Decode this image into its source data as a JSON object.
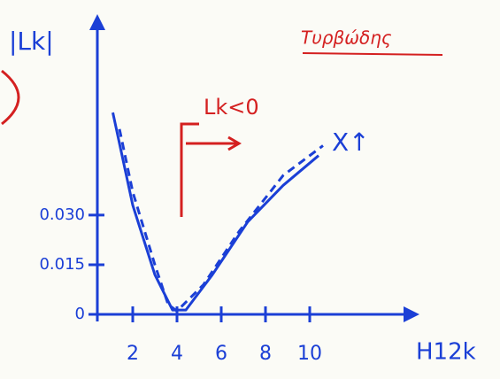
{
  "chart_data": {
    "type": "line",
    "y_label": "|Lk|",
    "x_label": "H12k",
    "annotations": [
      "Lk<0",
      "X↑",
      "Τυρβώδης"
    ],
    "xlim": [
      0.4,
      14.4
    ],
    "ylim": [
      0,
      0.087
    ],
    "xticks": [
      2,
      4,
      6,
      8,
      10
    ],
    "yticks": [
      0,
      0.015,
      {
        "value": 0.03,
        "label": "0.030"
      }
    ],
    "grid": false,
    "color": "#1b3fd6",
    "series": [
      {
        "style": "solid",
        "color": "#1b3fd6",
        "x": [
          1.1,
          2,
          3,
          3.8,
          4.4,
          5.6,
          7.2,
          8.8,
          10.4
        ],
        "values": [
          0.061,
          0.033,
          0.012,
          0.0013,
          0.0013,
          0.012,
          0.028,
          0.039,
          0.048
        ]
      },
      {
        "style": "dashed",
        "color": "#1b3fd6",
        "x": [
          1.4,
          2,
          3,
          3.6,
          4,
          5.2,
          6.8,
          8.8,
          10.6
        ],
        "values": [
          0.056,
          0.037,
          0.015,
          0.003,
          0.001,
          0.009,
          0.025,
          0.042,
          0.051
        ]
      }
    ]
  }
}
